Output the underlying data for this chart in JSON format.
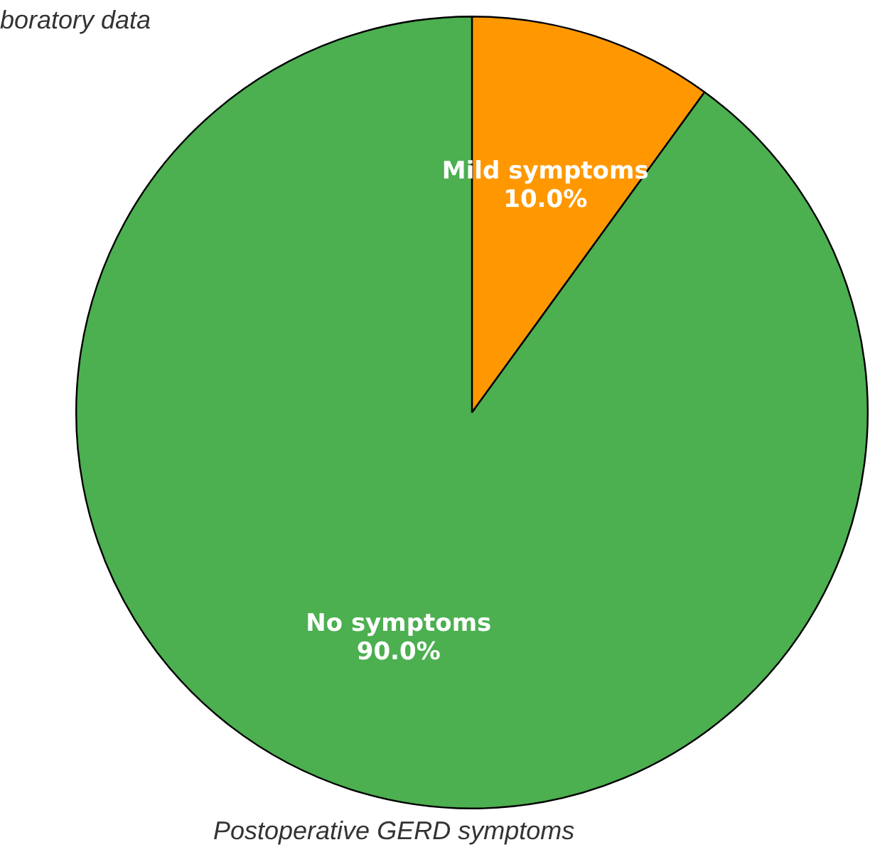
{
  "chart_data": {
    "type": "pie",
    "categories": [
      "Mild symptoms",
      "No symptoms"
    ],
    "values": [
      10,
      90
    ],
    "colors": [
      "#ff9800",
      "#4caf50"
    ],
    "value_labels": [
      "10.0%",
      "90.0%"
    ],
    "annotations": [
      "boratory data",
      "Postoperative GERD symptoms"
    ]
  }
}
